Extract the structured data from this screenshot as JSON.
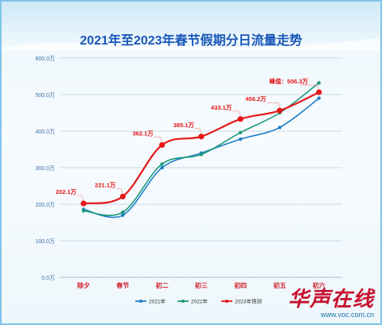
{
  "chart_data": {
    "type": "line",
    "title": "2021年至2023年春节假期分日流量走势",
    "categories": [
      "除夕",
      "春节",
      "初二",
      "初三",
      "初四",
      "初五",
      "初六"
    ],
    "y_ticks": [
      "0.0万",
      "100.0万",
      "200.0万",
      "300.0万",
      "400.0万",
      "500.0万",
      "600.0万"
    ],
    "ylim": [
      0,
      600
    ],
    "grid": true,
    "legend_position": "bottom",
    "series": [
      {
        "name": "2021年",
        "color": "#1f7fc8",
        "values": [
          186,
          170,
          300,
          340,
          378,
          410,
          490
        ]
      },
      {
        "name": "2022年",
        "color": "#1a9a78",
        "values": [
          182,
          178,
          310,
          336,
          396,
          450,
          532
        ]
      },
      {
        "name": "2023年预测",
        "color": "#e61717",
        "values": [
          202.1,
          221.1,
          362.1,
          385.1,
          433.1,
          456.2,
          506.3
        ]
      }
    ],
    "data_labels": [
      "202.1万",
      "221.1万",
      "362.1万",
      "385.1万",
      "433.1万",
      "456.2万",
      "峰值：506.3万"
    ]
  },
  "colors": {
    "title": "#1a57b8",
    "frame": "#7fc4e8",
    "label": "#e61717",
    "axis_text": "#3b6fa8"
  },
  "watermark": {
    "logo": "华声在线",
    "url": "www.voc.com.cn"
  }
}
